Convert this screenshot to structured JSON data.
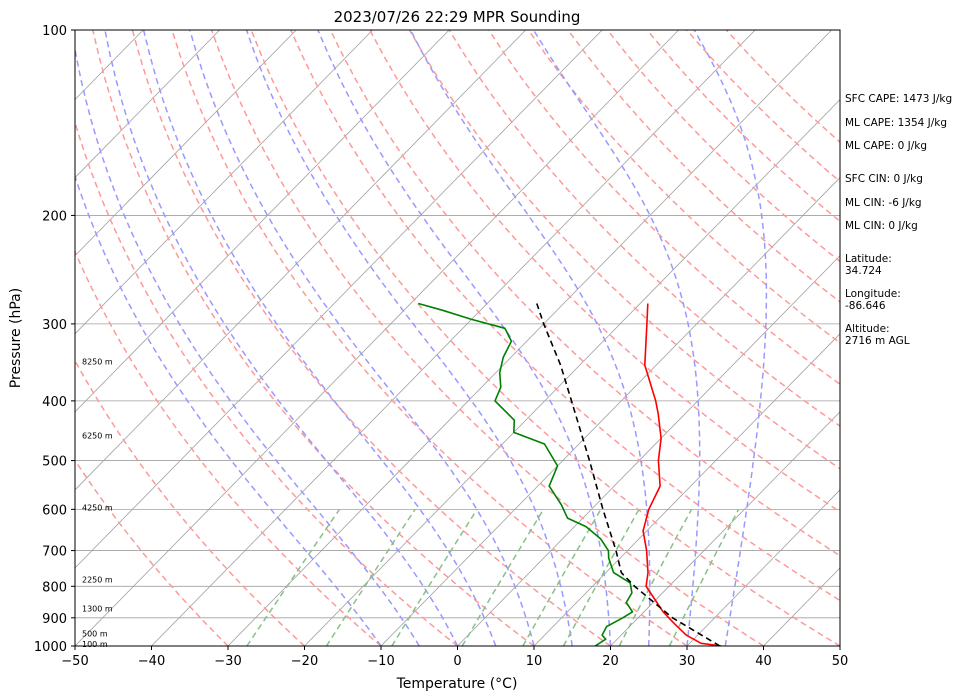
{
  "chart_data": {
    "type": "line",
    "title": "2023/07/26 22:29 MPR Sounding",
    "xlabel": "Temperature (°C)",
    "ylabel": "Pressure (hPa)",
    "xlim": [
      -50,
      50
    ],
    "ylim": [
      1000,
      100
    ],
    "y_scale": "log",
    "x_ticks": [
      "−50",
      "−40",
      "−30",
      "−20",
      "−10",
      "0",
      "10",
      "20",
      "30",
      "40",
      "50"
    ],
    "y_ticks": [
      {
        "p": 100,
        "label": "100"
      },
      {
        "p": 200,
        "label": "200"
      },
      {
        "p": 300,
        "label": "300"
      },
      {
        "p": 400,
        "label": "400"
      },
      {
        "p": 500,
        "label": "500"
      },
      {
        "p": 600,
        "label": "600"
      },
      {
        "p": 700,
        "label": "700"
      },
      {
        "p": 800,
        "label": "800"
      },
      {
        "p": 900,
        "label": "900"
      },
      {
        "p": 1000,
        "label": "1000"
      }
    ],
    "height_labels": [
      {
        "label": "100 m",
        "p": 993
      },
      {
        "label": "500 m",
        "p": 955
      },
      {
        "label": "1300 m",
        "p": 870
      },
      {
        "label": "2250 m",
        "p": 780
      },
      {
        "label": "4250 m",
        "p": 596
      },
      {
        "label": "6250 m",
        "p": 455
      },
      {
        "label": "8250 m",
        "p": 345
      }
    ],
    "series": [
      {
        "color": "#ff0000",
        "dash": false,
        "points": [
          {
            "p": 1000,
            "t": 34.5
          },
          {
            "p": 990,
            "t": 31.5
          },
          {
            "p": 960,
            "t": 28.5
          },
          {
            "p": 920,
            "t": 25.5
          },
          {
            "p": 880,
            "t": 22.5
          },
          {
            "p": 850,
            "t": 20.5
          },
          {
            "p": 800,
            "t": 17.0
          },
          {
            "p": 760,
            "t": 15.5
          },
          {
            "p": 700,
            "t": 12.5
          },
          {
            "p": 650,
            "t": 9.5
          },
          {
            "p": 600,
            "t": 7.5
          },
          {
            "p": 550,
            "t": 6.0
          },
          {
            "p": 500,
            "t": 2.5
          },
          {
            "p": 460,
            "t": 0.0
          },
          {
            "p": 420,
            "t": -3.5
          },
          {
            "p": 400,
            "t": -5.5
          },
          {
            "p": 350,
            "t": -11.5
          },
          {
            "p": 300,
            "t": -16.5
          },
          {
            "p": 278,
            "t": -19.0
          }
        ]
      },
      {
        "color": "#008000",
        "dash": false,
        "points": [
          {
            "p": 1000,
            "t": 18.0
          },
          {
            "p": 975,
            "t": 18.5
          },
          {
            "p": 960,
            "t": 17.5
          },
          {
            "p": 930,
            "t": 17.0
          },
          {
            "p": 900,
            "t": 18.0
          },
          {
            "p": 880,
            "t": 18.5
          },
          {
            "p": 850,
            "t": 16.5
          },
          {
            "p": 820,
            "t": 16.0
          },
          {
            "p": 790,
            "t": 14.5
          },
          {
            "p": 760,
            "t": 11.0
          },
          {
            "p": 720,
            "t": 8.5
          },
          {
            "p": 700,
            "t": 7.5
          },
          {
            "p": 670,
            "t": 5.0
          },
          {
            "p": 640,
            "t": 1.5
          },
          {
            "p": 620,
            "t": -2.0
          },
          {
            "p": 590,
            "t": -4.5
          },
          {
            "p": 550,
            "t": -8.5
          },
          {
            "p": 510,
            "t": -10.0
          },
          {
            "p": 470,
            "t": -14.5
          },
          {
            "p": 450,
            "t": -20.0
          },
          {
            "p": 430,
            "t": -21.5
          },
          {
            "p": 400,
            "t": -26.5
          },
          {
            "p": 380,
            "t": -27.5
          },
          {
            "p": 360,
            "t": -29.5
          },
          {
            "p": 340,
            "t": -31.0
          },
          {
            "p": 320,
            "t": -32.0
          },
          {
            "p": 305,
            "t": -34.5
          },
          {
            "p": 295,
            "t": -40.0
          },
          {
            "p": 285,
            "t": -45.0
          },
          {
            "p": 278,
            "t": -49.0
          }
        ]
      },
      {
        "color": "#000000",
        "dash": true,
        "points": [
          {
            "p": 1000,
            "t": 34.3
          },
          {
            "p": 900,
            "t": 24.5
          },
          {
            "p": 800,
            "t": 15.5
          },
          {
            "p": 760,
            "t": 12.0
          },
          {
            "p": 700,
            "t": 8.5
          },
          {
            "p": 600,
            "t": 1.5
          },
          {
            "p": 500,
            "t": -6.5
          },
          {
            "p": 400,
            "t": -16.5
          },
          {
            "p": 350,
            "t": -22.5
          },
          {
            "p": 300,
            "t": -30.0
          },
          {
            "p": 278,
            "t": -33.5
          }
        ]
      }
    ],
    "isotherms": [
      -150,
      -140,
      -130,
      -120,
      -110,
      -100,
      -90,
      -80,
      -70,
      -60,
      -50,
      -40,
      -30,
      -20,
      -10,
      0,
      10,
      20,
      30,
      40,
      50
    ],
    "dry_adiabats_c": [
      -30,
      -20,
      -10,
      0,
      10,
      20,
      30,
      40,
      50,
      60,
      70,
      80,
      90,
      100,
      110,
      120,
      130,
      140,
      150,
      160,
      170
    ],
    "moist_adiabats_c": [
      -10,
      -5,
      0,
      5,
      10,
      15,
      20,
      25,
      30,
      35
    ],
    "mixing_ratios_gkg": [
      0.4,
      1,
      2,
      4,
      7,
      10,
      16,
      24
    ],
    "annotations": [
      "SFC CAPE: 1473 J/kg",
      "ML CAPE: 1354 J/kg",
      "ML CAPE: 0 J/kg",
      "SFC CIN: 0 J/kg",
      "ML CIN: -6 J/kg",
      "ML CIN: 0 J/kg",
      "Latitude:",
      "34.724",
      "Longitude:",
      "-86.646",
      "Altitude:",
      "2716 m AGL"
    ],
    "colors": {
      "dry_adiabat": "#ff9999",
      "moist_adiabat": "#9999ff",
      "mixing_ratio": "#88c088",
      "isotherm": "#a0a0a0",
      "isobar": "#a0a0a0"
    }
  }
}
